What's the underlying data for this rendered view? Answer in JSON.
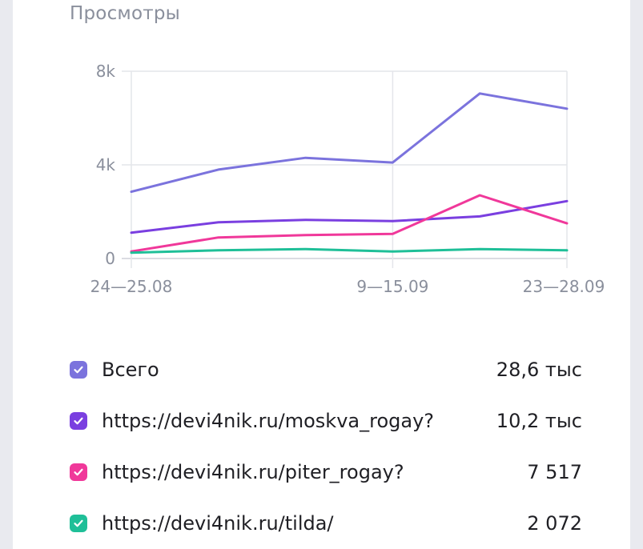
{
  "chart_data": {
    "type": "line",
    "title": "Просмотры",
    "x_tick_labels": [
      "24—25.08",
      "9—15.09",
      "23—28.09"
    ],
    "x": [
      "24—25.08",
      "",
      "",
      "9—15.09",
      "",
      "23—28.09"
    ],
    "y_tick_labels": [
      "8k",
      "4k",
      "0"
    ],
    "ylim": [
      0,
      8000
    ],
    "grid": true,
    "series": [
      {
        "name": "Всего",
        "color": "#7b73dd",
        "values": [
          2850,
          3800,
          4300,
          4100,
          7050,
          6400
        ]
      },
      {
        "name": "https://devi4nik.ru/moskva_rogay?",
        "color": "#7a3fe0",
        "values": [
          1100,
          1550,
          1650,
          1600,
          1800,
          2450
        ]
      },
      {
        "name": "https://devi4nik.ru/piter_rogay?",
        "color": "#f0389a",
        "values": [
          300,
          900,
          1000,
          1050,
          2700,
          1500
        ]
      },
      {
        "name": "https://devi4nik.ru/tilda/",
        "color": "#1fbf98",
        "values": [
          250,
          350,
          400,
          300,
          400,
          350
        ]
      }
    ]
  },
  "legend": [
    {
      "label": "Всего",
      "value": "28,6 тыс",
      "color": "#7b73dd"
    },
    {
      "label": "https://devi4nik.ru/moskva_rogay?",
      "value": "10,2 тыс",
      "color": "#7a3fe0"
    },
    {
      "label": "https://devi4nik.ru/piter_rogay?",
      "value": "7 517",
      "color": "#f0389a"
    },
    {
      "label": "https://devi4nik.ru/tilda/",
      "value": "2 072",
      "color": "#1fbf98"
    }
  ]
}
